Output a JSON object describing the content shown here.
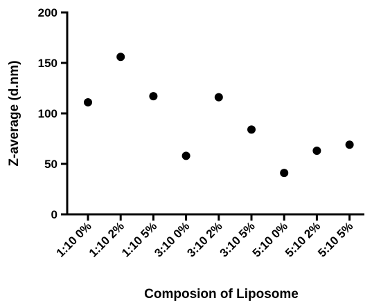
{
  "chart_data": {
    "type": "scatter",
    "title": "",
    "xlabel": "Composion of Liposome",
    "ylabel": "Z-average (d.nm)",
    "categories": [
      "1:10 0%",
      "1:10 2%",
      "1:10 5%",
      "3:10 0%",
      "3:10 2%",
      "3:10 5%",
      "5:10 0%",
      "5:10 2%",
      "5:10 5%"
    ],
    "values": [
      111,
      156,
      117,
      58,
      116,
      84,
      41,
      63,
      69
    ],
    "ylim": [
      0,
      200
    ],
    "yticks": [
      0,
      50,
      100,
      150,
      200
    ],
    "grid": false,
    "marker_color": "#000000"
  }
}
